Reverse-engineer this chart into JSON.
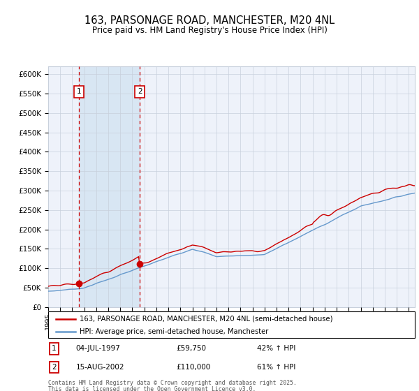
{
  "title": "163, PARSONAGE ROAD, MANCHESTER, M20 4NL",
  "subtitle": "Price paid vs. HM Land Registry's House Price Index (HPI)",
  "legend_line1": "163, PARSONAGE ROAD, MANCHESTER, M20 4NL (semi-detached house)",
  "legend_line2": "HPI: Average price, semi-detached house, Manchester",
  "annotation1_label": "1",
  "annotation1_date": "04-JUL-1997",
  "annotation1_price": "£59,750",
  "annotation1_hpi": "42% ↑ HPI",
  "annotation1_year": 1997.54,
  "annotation1_value": 59750,
  "annotation2_label": "2",
  "annotation2_date": "15-AUG-2002",
  "annotation2_price": "£110,000",
  "annotation2_hpi": "61% ↑ HPI",
  "annotation2_year": 2002.62,
  "annotation2_value": 110000,
  "ylabel_ticks": [
    0,
    50000,
    100000,
    150000,
    200000,
    250000,
    300000,
    350000,
    400000,
    450000,
    500000,
    550000,
    600000
  ],
  "ylabel_labels": [
    "£0",
    "£50K",
    "£100K",
    "£150K",
    "£200K",
    "£250K",
    "£300K",
    "£350K",
    "£400K",
    "£450K",
    "£500K",
    "£550K",
    "£600K"
  ],
  "xmin": 1995,
  "xmax": 2025.5,
  "ymin": 0,
  "ymax": 620000,
  "hpi_color": "#6699cc",
  "price_color": "#cc0000",
  "bg_color": "#eef2fa",
  "shade_color": "#d8e6f3",
  "grid_color": "#c8d0dc",
  "footnote1": "Contains HM Land Registry data © Crown copyright and database right 2025.",
  "footnote2": "This data is licensed under the Open Government Licence v3.0."
}
